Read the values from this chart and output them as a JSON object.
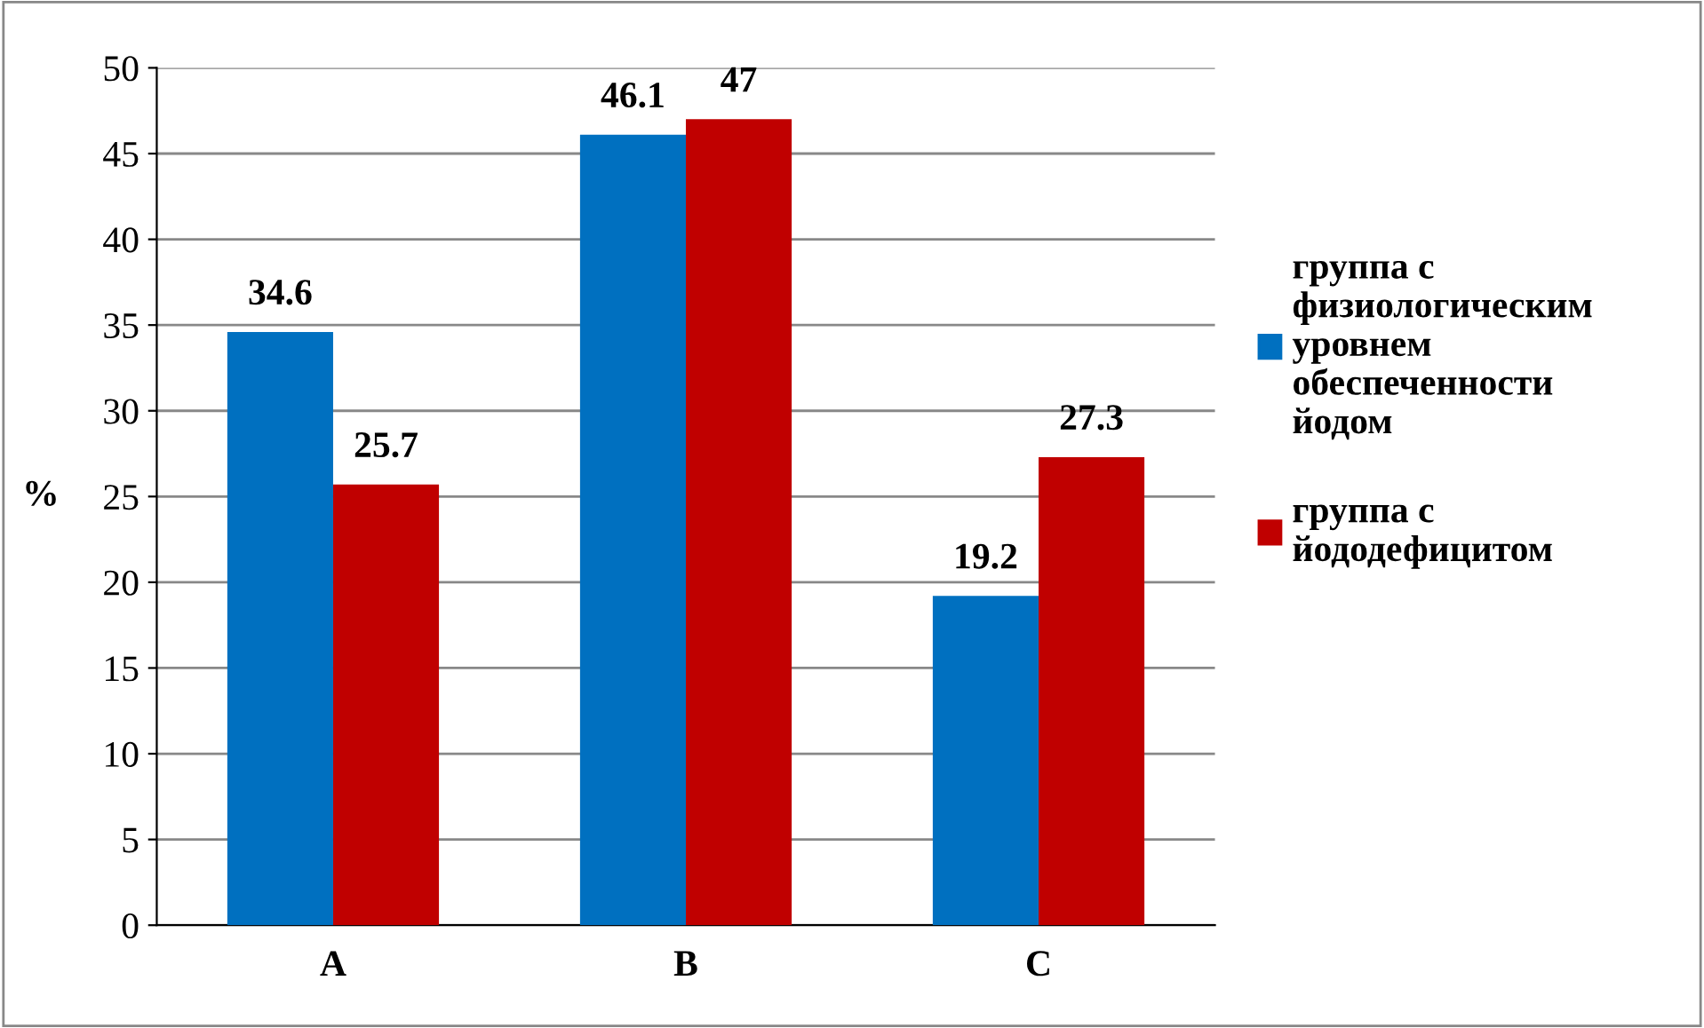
{
  "chart_data": {
    "type": "bar",
    "categories": [
      "A",
      "B",
      "C"
    ],
    "ylabel": "%",
    "series": [
      {
        "name": "группа с\nфизиологическим\nуровнем\nобеспеченности\nйодом",
        "color": "#0070c0",
        "values": [
          34.6,
          46.1,
          19.2
        ]
      },
      {
        "name": "группа с\nйододефицитом",
        "color": "#c00000",
        "values": [
          25.7,
          47,
          27.3
        ]
      }
    ],
    "ylim": [
      0,
      50
    ],
    "yticks": [
      0,
      5,
      10,
      15,
      20,
      25,
      30,
      35,
      40,
      45,
      50
    ],
    "grid": "y",
    "legend": "right",
    "data_labels": true
  }
}
